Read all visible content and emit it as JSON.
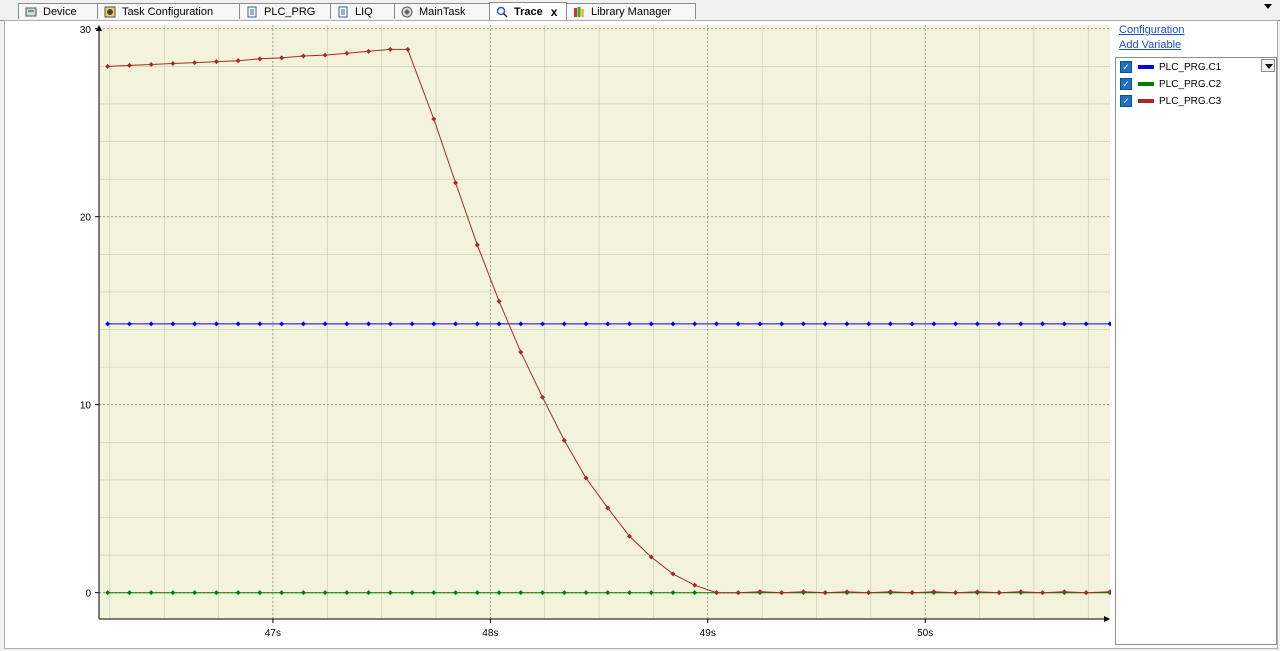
{
  "tabs": [
    {
      "label": "Device",
      "icon": "device-icon"
    },
    {
      "label": "Task Configuration",
      "icon": "task-config-icon"
    },
    {
      "label": "PLC_PRG",
      "icon": "document-icon"
    },
    {
      "label": "LIQ",
      "icon": "document-icon"
    },
    {
      "label": "MainTask",
      "icon": "task-icon"
    },
    {
      "label": "Trace",
      "icon": "trace-icon",
      "active": true,
      "close": "x"
    },
    {
      "label": "Library Manager",
      "icon": "library-icon"
    }
  ],
  "sidebar": {
    "configuration_label": "Configuration",
    "add_variable_label": "Add Variable",
    "variables": [
      {
        "label": "PLC_PRG.C1",
        "color": "#0000ff",
        "checked": true
      },
      {
        "label": "PLC_PRG.C2",
        "color": "#008000",
        "checked": true
      },
      {
        "label": "PLC_PRG.C3",
        "color": "#a52a2a",
        "checked": true
      }
    ]
  },
  "colors": {
    "plot_background": "#f3f3dc",
    "grid": "#808080"
  },
  "chart_data": {
    "type": "line",
    "title": "",
    "xlabel": "",
    "ylabel": "",
    "xlim": [
      46.2,
      50.85
    ],
    "ylim": [
      -1.4,
      30.2
    ],
    "x_ticks": [
      47,
      48,
      49,
      50
    ],
    "x_tick_labels": [
      "47s",
      "48s",
      "49s",
      "50s"
    ],
    "y_ticks": [
      0,
      10,
      20,
      30
    ],
    "y_tick_labels": [
      "0",
      "10",
      "20",
      "30"
    ],
    "grid": true,
    "series": [
      {
        "name": "PLC_PRG.C1",
        "color": "#0000ff",
        "x": [
          46.24,
          46.34,
          46.44,
          46.54,
          46.64,
          46.74,
          46.84,
          46.94,
          47.04,
          47.14,
          47.24,
          47.34,
          47.44,
          47.54,
          47.64,
          47.74,
          47.84,
          47.94,
          48.04,
          48.14,
          48.24,
          48.34,
          48.44,
          48.54,
          48.64,
          48.74,
          48.84,
          48.94,
          49.04,
          49.14,
          49.24,
          49.34,
          49.44,
          49.54,
          49.64,
          49.74,
          49.84,
          49.94,
          50.04,
          50.14,
          50.24,
          50.34,
          50.44,
          50.54,
          50.64,
          50.74,
          50.85
        ],
        "values": [
          14.3,
          14.3,
          14.3,
          14.3,
          14.3,
          14.3,
          14.3,
          14.3,
          14.3,
          14.3,
          14.3,
          14.3,
          14.3,
          14.3,
          14.3,
          14.3,
          14.3,
          14.3,
          14.3,
          14.3,
          14.3,
          14.3,
          14.3,
          14.3,
          14.3,
          14.3,
          14.3,
          14.3,
          14.3,
          14.3,
          14.3,
          14.3,
          14.3,
          14.3,
          14.3,
          14.3,
          14.3,
          14.3,
          14.3,
          14.3,
          14.3,
          14.3,
          14.3,
          14.3,
          14.3,
          14.3,
          14.3
        ]
      },
      {
        "name": "PLC_PRG.C2",
        "color": "#008000",
        "x": [
          46.24,
          46.34,
          46.44,
          46.54,
          46.64,
          46.74,
          46.84,
          46.94,
          47.04,
          47.14,
          47.24,
          47.34,
          47.44,
          47.54,
          47.64,
          47.74,
          47.84,
          47.94,
          48.04,
          48.14,
          48.24,
          48.34,
          48.44,
          48.54,
          48.64,
          48.74,
          48.84,
          48.94,
          49.04,
          49.14,
          49.24,
          49.34,
          49.44,
          49.54,
          49.64,
          49.74,
          49.84,
          49.94,
          50.04,
          50.14,
          50.24,
          50.34,
          50.44,
          50.54,
          50.64,
          50.74,
          50.85
        ],
        "values": [
          0,
          0,
          0,
          0,
          0,
          0,
          0,
          0,
          0,
          0,
          0,
          0,
          0,
          0,
          0,
          0,
          0,
          0,
          0,
          0,
          0,
          0,
          0,
          0,
          0,
          0,
          0,
          0,
          0,
          0,
          0,
          0,
          0,
          0,
          0,
          0,
          0,
          0,
          0,
          0,
          0,
          0,
          0,
          0,
          0,
          0,
          0
        ]
      },
      {
        "name": "PLC_PRG.C3",
        "color": "#a52a2a",
        "x": [
          46.24,
          46.34,
          46.44,
          46.54,
          46.64,
          46.74,
          46.84,
          46.94,
          47.04,
          47.14,
          47.24,
          47.34,
          47.44,
          47.54,
          47.62,
          47.74,
          47.84,
          47.94,
          48.04,
          48.14,
          48.24,
          48.34,
          48.44,
          48.54,
          48.64,
          48.74,
          48.84,
          48.94,
          49.04,
          49.14,
          49.24,
          49.34,
          49.44,
          49.54,
          49.64,
          49.74,
          49.84,
          49.94,
          50.04,
          50.14,
          50.24,
          50.34,
          50.44,
          50.54,
          50.64,
          50.74,
          50.85
        ],
        "values": [
          28.0,
          28.05,
          28.1,
          28.15,
          28.2,
          28.25,
          28.3,
          28.4,
          28.45,
          28.55,
          28.6,
          28.7,
          28.8,
          28.9,
          28.9,
          25.2,
          21.8,
          18.5,
          15.5,
          12.8,
          10.4,
          8.1,
          6.1,
          4.5,
          3.0,
          1.9,
          1.0,
          0.4,
          0.0,
          0.0,
          0.05,
          0.0,
          0.05,
          0.0,
          0.05,
          0.0,
          0.05,
          0.0,
          0.05,
          0.0,
          0.05,
          0.0,
          0.05,
          0.0,
          0.05,
          0.0,
          0.05
        ]
      }
    ]
  }
}
